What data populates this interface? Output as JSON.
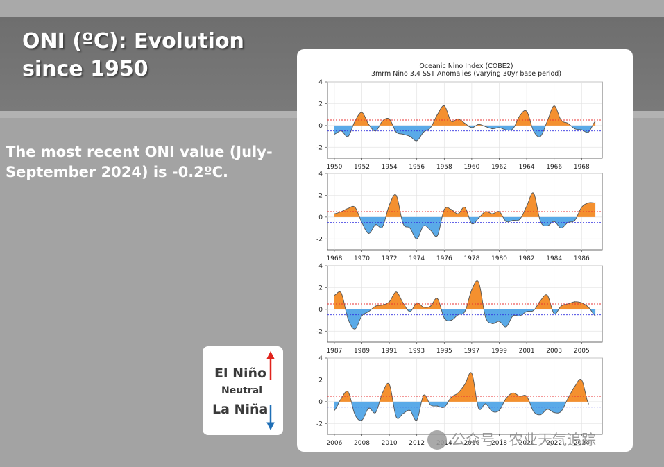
{
  "slide": {
    "title_line1": "ONI (ºC): Evolution",
    "title_line2": "since 1950",
    "body_line1": "The most recent ONI value (July-",
    "body_line2": "September 2024) is -0.2ºC."
  },
  "legend_box": {
    "el_nino": "El Niño",
    "neutral": "Neutral",
    "la_nina": "La Niña",
    "colors": {
      "up_arrow": "#e0231c",
      "down_arrow": "#1f6fb6"
    }
  },
  "watermark": {
    "text": "公众号 · 农业天气追踪"
  },
  "colors": {
    "positive_fill": "#f4902f",
    "negative_fill": "#5aaae8",
    "upper_threshold": "#e83030",
    "lower_threshold": "#3232e0",
    "line": "#555555"
  },
  "chart_data": {
    "type": "area",
    "title": "Oceanic Nino Index (COBE2)",
    "subtitle": "3mrm Nino 3.4 SST Anomalies (varying 30yr base period)",
    "thresholds": [
      0.5,
      -0.5
    ],
    "ylim": [
      -3,
      4
    ],
    "yticks": [
      -2,
      0,
      2,
      4
    ],
    "grid": true,
    "panels": [
      {
        "xlim": [
          1949.5,
          1969.5
        ],
        "xticks": [
          1950,
          1952,
          1954,
          1956,
          1958,
          1960,
          1962,
          1964,
          1966,
          1968
        ],
        "x": [
          1950.0,
          1950.5,
          1951.0,
          1951.5,
          1952.0,
          1952.5,
          1953.0,
          1953.5,
          1954.0,
          1954.5,
          1955.0,
          1955.5,
          1956.0,
          1956.5,
          1957.0,
          1957.5,
          1958.0,
          1958.5,
          1959.0,
          1959.5,
          1960.0,
          1960.5,
          1961.0,
          1961.5,
          1962.0,
          1962.5,
          1963.0,
          1963.5,
          1964.0,
          1964.5,
          1965.0,
          1965.5,
          1966.0,
          1966.5,
          1967.0,
          1967.5,
          1968.0,
          1968.5,
          1969.0
        ],
        "y": [
          -0.8,
          -0.5,
          -1.0,
          0.4,
          1.2,
          0.1,
          -0.5,
          0.4,
          0.6,
          -0.6,
          -0.8,
          -1.0,
          -1.4,
          -0.6,
          -0.2,
          1.0,
          1.8,
          0.4,
          0.6,
          0.2,
          -0.2,
          0.1,
          -0.1,
          -0.3,
          -0.2,
          -0.4,
          -0.3,
          0.9,
          1.3,
          -0.5,
          -1.0,
          0.4,
          1.8,
          0.5,
          0.2,
          -0.3,
          -0.4,
          -0.6,
          0.4
        ]
      },
      {
        "xlim": [
          1967.5,
          1987.5
        ],
        "xticks": [
          1968,
          1970,
          1972,
          1974,
          1976,
          1978,
          1980,
          1982,
          1984,
          1986
        ],
        "x": [
          1968.0,
          1968.5,
          1969.0,
          1969.5,
          1970.0,
          1970.5,
          1971.0,
          1971.5,
          1972.0,
          1972.5,
          1973.0,
          1973.5,
          1974.0,
          1974.5,
          1975.0,
          1975.5,
          1976.0,
          1976.5,
          1977.0,
          1977.5,
          1978.0,
          1978.5,
          1979.0,
          1979.5,
          1980.0,
          1980.5,
          1981.0,
          1981.5,
          1982.0,
          1982.5,
          1983.0,
          1983.5,
          1984.0,
          1984.5,
          1985.0,
          1985.5,
          1986.0,
          1986.5,
          1987.0
        ],
        "y": [
          0.3,
          0.5,
          0.8,
          0.9,
          -0.5,
          -1.5,
          -0.7,
          -0.9,
          1.1,
          2.0,
          -0.6,
          -1.0,
          -2.0,
          -0.8,
          -1.2,
          -1.7,
          0.7,
          0.7,
          0.3,
          0.9,
          -0.6,
          -0.1,
          0.5,
          0.3,
          0.5,
          -0.4,
          -0.3,
          -0.2,
          1.0,
          2.2,
          -0.4,
          -0.8,
          -0.4,
          -1.0,
          -0.5,
          -0.3,
          0.9,
          1.3,
          1.3
        ]
      },
      {
        "xlim": [
          1986.5,
          2006.5
        ],
        "xticks": [
          1987,
          1989,
          1991,
          1993,
          1995,
          1997,
          1999,
          2001,
          2003,
          2005
        ],
        "x": [
          1987.0,
          1987.5,
          1988.0,
          1988.5,
          1989.0,
          1989.5,
          1990.0,
          1990.5,
          1991.0,
          1991.5,
          1992.0,
          1992.5,
          1993.0,
          1993.5,
          1994.0,
          1994.5,
          1995.0,
          1995.5,
          1996.0,
          1996.5,
          1997.0,
          1997.5,
          1998.0,
          1998.5,
          1999.0,
          1999.5,
          2000.0,
          2000.5,
          2001.0,
          2001.5,
          2002.0,
          2002.5,
          2003.0,
          2003.5,
          2004.0,
          2004.5,
          2005.0,
          2005.5,
          2006.0
        ],
        "y": [
          1.3,
          1.5,
          -0.9,
          -1.8,
          -0.6,
          -0.2,
          0.3,
          0.4,
          0.7,
          1.6,
          0.6,
          -0.2,
          0.6,
          0.2,
          0.3,
          1.0,
          -0.8,
          -1.0,
          -0.5,
          -0.2,
          1.8,
          2.5,
          -0.7,
          -1.3,
          -1.1,
          -1.6,
          -0.6,
          -0.6,
          -0.2,
          -0.1,
          0.8,
          1.3,
          -0.4,
          0.3,
          0.5,
          0.7,
          0.6,
          0.2,
          -0.6
        ]
      },
      {
        "xlim": [
          2005.5,
          2025.5
        ],
        "xticks": [
          2006,
          2008,
          2010,
          2012,
          2014,
          2016,
          2018,
          2020,
          2022,
          2024
        ],
        "x": [
          2006.0,
          2006.5,
          2007.0,
          2007.5,
          2008.0,
          2008.5,
          2009.0,
          2009.5,
          2010.0,
          2010.5,
          2011.0,
          2011.5,
          2012.0,
          2012.5,
          2013.0,
          2013.5,
          2014.0,
          2014.5,
          2015.0,
          2015.5,
          2016.0,
          2016.5,
          2017.0,
          2017.5,
          2018.0,
          2018.5,
          2019.0,
          2019.5,
          2020.0,
          2020.5,
          2021.0,
          2021.5,
          2022.0,
          2022.5,
          2023.0,
          2023.5,
          2024.0,
          2024.5
        ],
        "y": [
          -0.8,
          0.3,
          0.9,
          -1.2,
          -1.7,
          -0.6,
          -1.0,
          0.8,
          1.6,
          -1.4,
          -1.1,
          -0.8,
          -1.7,
          0.6,
          -0.3,
          -0.4,
          -0.5,
          0.4,
          0.8,
          1.6,
          2.6,
          -0.6,
          -0.2,
          -0.9,
          -0.8,
          0.3,
          0.8,
          0.5,
          0.5,
          -0.9,
          -1.2,
          -0.7,
          -1.0,
          -0.9,
          0.3,
          1.4,
          2.0,
          -0.2
        ]
      }
    ]
  }
}
